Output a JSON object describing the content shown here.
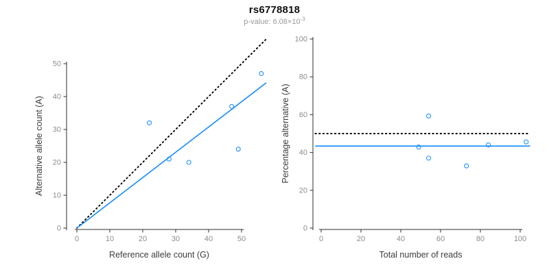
{
  "header": {
    "title": "rs6778818",
    "subtitle_base": "p-value: 6.08×10",
    "subtitle_exp": "-3"
  },
  "colors": {
    "accent_blue": "#1E90FF",
    "line_black": "#000000",
    "axis": "#2e2e2e",
    "tick_label": "#8c8c8c",
    "axis_title": "#3c3c3c",
    "title": "#111111",
    "subtitle": "#9a9a9a"
  },
  "chart_data": [
    {
      "name": "allele-count-scatter",
      "type": "scatter",
      "title": "",
      "xlabel": "Reference allele count (G)",
      "ylabel": "Alternative allele count (A)",
      "xlim": [
        0,
        57.5
      ],
      "ylim": [
        0,
        57.5
      ],
      "xticks": [
        0,
        10,
        20,
        30,
        40,
        50
      ],
      "yticks": [
        0,
        10,
        20,
        30,
        40,
        50
      ],
      "grid": false,
      "points": [
        [
          22,
          32
        ],
        [
          28,
          21
        ],
        [
          34,
          20
        ],
        [
          47,
          37
        ],
        [
          49,
          24
        ],
        [
          56,
          47
        ]
      ],
      "lines": [
        {
          "name": "identity-line",
          "style": "dotted",
          "color": "#000000",
          "x": [
            0,
            57.5
          ],
          "y": [
            0,
            57.5
          ]
        },
        {
          "name": "regression-line",
          "style": "solid",
          "color": "#1E90FF",
          "x": [
            0,
            57.5
          ],
          "y": [
            0,
            44.2
          ]
        }
      ]
    },
    {
      "name": "percentage-alternative-scatter",
      "type": "scatter",
      "title": "",
      "xlabel": "Total number of reads",
      "ylabel": "Percentage alternative (A)",
      "xlim": [
        0,
        105
      ],
      "ylim": [
        0,
        100
      ],
      "xticks": [
        0,
        20,
        40,
        60,
        80,
        100
      ],
      "yticks": [
        0,
        20,
        40,
        60,
        80,
        100
      ],
      "grid": false,
      "points": [
        [
          54,
          59.3
        ],
        [
          49,
          42.9
        ],
        [
          54,
          37.0
        ],
        [
          84,
          44.0
        ],
        [
          73,
          32.9
        ],
        [
          103,
          45.6
        ]
      ],
      "lines": [
        {
          "name": "expected-50pct-line",
          "style": "dotted",
          "color": "#000000",
          "x": [
            -3,
            105
          ],
          "y": [
            50,
            50
          ]
        },
        {
          "name": "mean-percentage-line",
          "style": "solid",
          "color": "#1E90FF",
          "x": [
            -3,
            105
          ],
          "y": [
            43.4,
            43.4
          ]
        }
      ]
    }
  ]
}
